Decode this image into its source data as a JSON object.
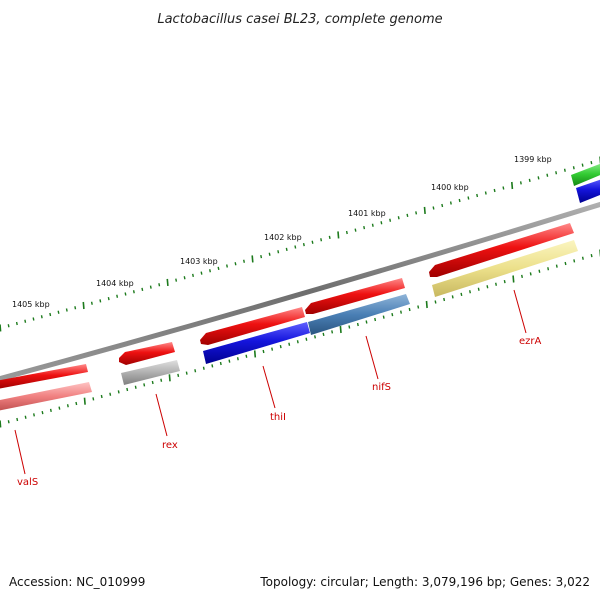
{
  "title": "Lactobacillus casei BL23, complete genome",
  "footer": {
    "accession": "Accession: NC_010999",
    "summary": "Topology: circular; Length: 3,079,196 bp; Genes: 3,022"
  },
  "colors": {
    "backbone": "#7a7a7a",
    "tick": "#1c7a1c",
    "gene_label": "#cc0000",
    "red": "#ee1111",
    "pink": "#f08080",
    "gray": "#b0b0b0",
    "blue": "#1515dd",
    "steelblue": "#4a7fb5",
    "khaki": "#ece08a",
    "green": "#33cc33"
  },
  "kbp_labels": [
    "1399 kbp",
    "1400 kbp",
    "1401 kbp",
    "1402 kbp",
    "1403 kbp",
    "1404 kbp",
    "1405 kbp"
  ],
  "gene_labels": [
    "ezrA",
    "nifS",
    "thiI",
    "rex",
    "valS"
  ]
}
